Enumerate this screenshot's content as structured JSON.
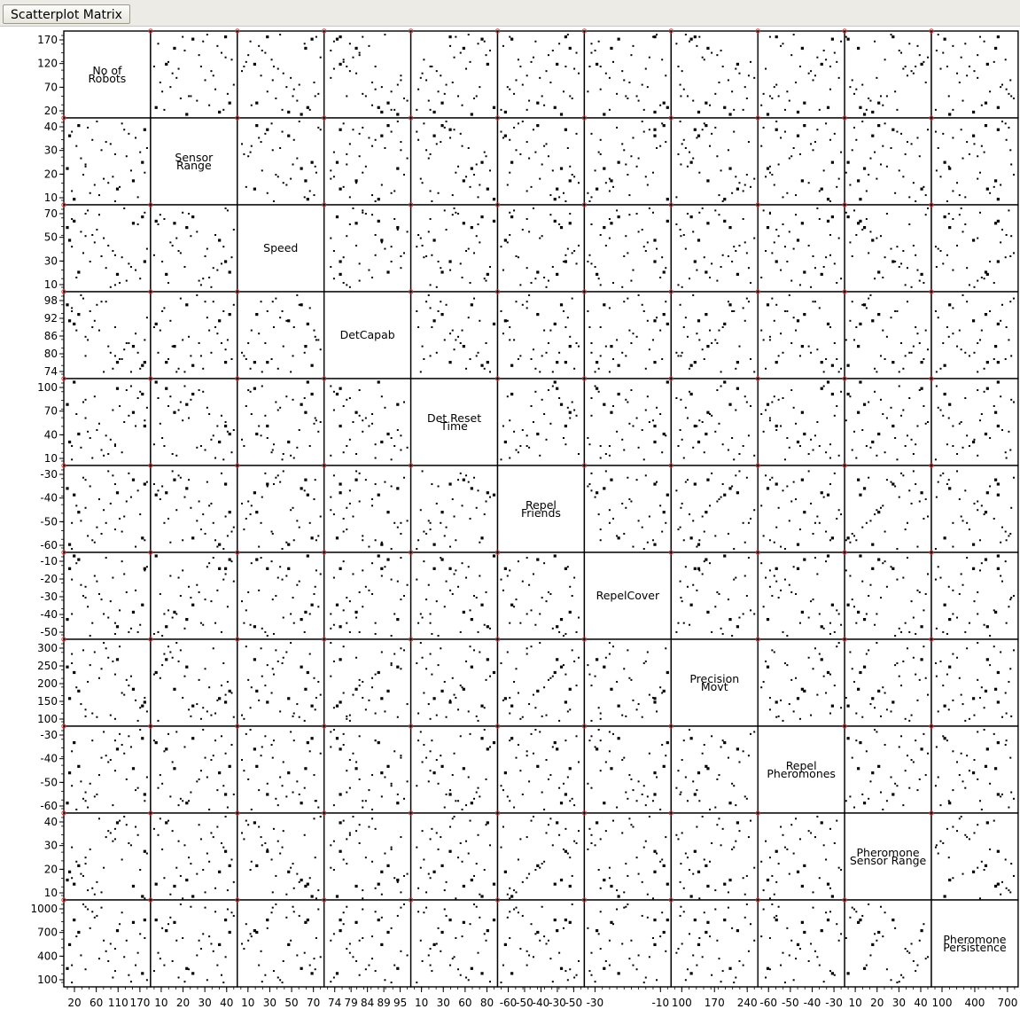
{
  "window": {
    "title": "Scatterplot Matrix"
  },
  "chart_data": {
    "type": "scatter",
    "subtype": "scatterplot-matrix",
    "grid": false,
    "variables": [
      {
        "name": "No of Robots",
        "label_lines": [
          "No of",
          "Robots"
        ],
        "range": [
          20,
          195
        ],
        "y_ticks": [
          "170",
          "120",
          "70",
          "20"
        ],
        "x_ticks": [
          "20",
          "60",
          "110",
          "170"
        ]
      },
      {
        "name": "Sensor Range",
        "label_lines": [
          "Sensor",
          "Range"
        ],
        "range": [
          3,
          42
        ],
        "y_ticks": [
          "40",
          "30",
          "20",
          "10"
        ],
        "x_ticks": [
          "10",
          "20",
          "30",
          "40"
        ]
      },
      {
        "name": "Speed",
        "label_lines": [
          "Speed"
        ],
        "range": [
          5,
          80
        ],
        "y_ticks": [
          "70",
          "50",
          "30",
          "10"
        ],
        "x_ticks": [
          "10",
          "30",
          "50",
          "70"
        ]
      },
      {
        "name": "DetCapab",
        "label_lines": [
          "DetCapab"
        ],
        "range": [
          73,
          98
        ],
        "y_ticks": [
          "98",
          "92",
          "86",
          "80",
          "74"
        ],
        "x_ticks": [
          "74",
          "79",
          "84",
          "89",
          "95"
        ]
      },
      {
        "name": "Det Reset Time",
        "label_lines": [
          "Det Reset",
          "Time"
        ],
        "range": [
          0,
          100
        ],
        "y_ticks": [
          "100",
          "70",
          "40",
          "10"
        ],
        "x_ticks": [
          "10",
          "30",
          "60",
          "80"
        ]
      },
      {
        "name": "Repel Friends",
        "label_lines": [
          "Repel",
          "Friends"
        ],
        "range": [
          -62,
          -25
        ],
        "y_ticks": [
          "-30",
          "-40",
          "-50",
          "-60"
        ],
        "x_ticks": [
          "-60",
          "-50",
          "-40",
          "-30",
          "-50"
        ]
      },
      {
        "name": "RepelCover",
        "label_lines": [
          "RepelCover"
        ],
        "range": [
          -52,
          -8
        ],
        "y_ticks": [
          "-10",
          "-20",
          "-30",
          "-40",
          "-50"
        ],
        "x_ticks": [
          "-30",
          "-10"
        ]
      },
      {
        "name": "Precision Movt",
        "label_lines": [
          "Precision",
          "Movt"
        ],
        "range": [
          95,
          310
        ],
        "y_ticks": [
          "300",
          "250",
          "200",
          "150",
          "100"
        ],
        "x_ticks": [
          "100",
          "170",
          "240"
        ]
      },
      {
        "name": "Repel Pheromones",
        "label_lines": [
          "Repel",
          "Pheromones"
        ],
        "range": [
          -62,
          -25
        ],
        "y_ticks": [
          "-30",
          "-40",
          "-50",
          "-60"
        ],
        "x_ticks": [
          "-60",
          "-50",
          "-40",
          "-30"
        ]
      },
      {
        "name": "Pheromone Sensor Range",
        "label_lines": [
          "Pheromone",
          "Sensor Range"
        ],
        "range": [
          3,
          42
        ],
        "y_ticks": [
          "40",
          "30",
          "20",
          "10"
        ],
        "x_ticks": [
          "10",
          "20",
          "30",
          "40"
        ]
      },
      {
        "name": "Pheromone Persistence",
        "label_lines": [
          "Pheromone",
          "Persistence"
        ],
        "range": [
          80,
          1050
        ],
        "y_ticks": [
          "1000",
          "700",
          "400",
          "100"
        ],
        "x_ticks": [
          "100",
          "400",
          "700"
        ]
      }
    ],
    "observations": [
      [
        190,
        38,
        30,
        77,
        45,
        -32,
        -15,
        150,
        -55,
        25,
        850
      ],
      [
        30,
        8,
        70,
        94,
        20,
        -50,
        -40,
        280,
        -35,
        12,
        300
      ],
      [
        150,
        25,
        12,
        83,
        90,
        -40,
        -28,
        210,
        -48,
        38,
        600
      ],
      [
        75,
        33,
        55,
        88,
        5,
        -58,
        -45,
        120,
        -30,
        7,
        950
      ],
      [
        120,
        15,
        40,
        75,
        65,
        -28,
        -20,
        260,
        -60,
        30,
        150
      ],
      [
        45,
        40,
        20,
        92,
        35,
        -45,
        -10,
        180,
        -42,
        18,
        700
      ],
      [
        175,
        5,
        65,
        80,
        80,
        -35,
        -50,
        100,
        -52,
        33,
        450
      ],
      [
        95,
        28,
        35,
        96,
        15,
        -55,
        -32,
        240,
        -38,
        5,
        1000
      ],
      [
        60,
        20,
        75,
        85,
        55,
        -30,
        -25,
        130,
        -58,
        22,
        250
      ],
      [
        135,
        10,
        10,
        78,
        70,
        -48,
        -38,
        300,
        -27,
        40,
        800
      ],
      [
        25,
        35,
        50,
        90,
        25,
        -60,
        -15,
        160,
        -45,
        15,
        550
      ],
      [
        160,
        18,
        25,
        74,
        95,
        -38,
        -48,
        220,
        -33,
        28,
        100
      ],
      [
        85,
        42,
        60,
        95,
        40,
        -52,
        -22,
        110,
        -55,
        10,
        900
      ],
      [
        110,
        12,
        45,
        82,
        10,
        -26,
        -42,
        270,
        -40,
        35,
        350
      ],
      [
        40,
        30,
        15,
        87,
        60,
        -42,
        -12,
        190,
        -62,
        20,
        650
      ],
      [
        185,
        22,
        72,
        76,
        85,
        -57,
        -35,
        140,
        -29,
        3,
        200
      ],
      [
        70,
        7,
        30,
        93,
        30,
        -33,
        -52,
        250,
        -50,
        26,
        750
      ],
      [
        145,
        38,
        80,
        81,
        50,
        -47,
        -18,
        170,
        -36,
        42,
        400
      ],
      [
        55,
        16,
        38,
        97,
        75,
        -29,
        -30,
        290,
        -57,
        13,
        1040
      ],
      [
        125,
        26,
        8,
        79,
        20,
        -53,
        -45,
        105,
        -44,
        31,
        500
      ],
      [
        35,
        4,
        68,
        89,
        100,
        -37,
        -8,
        230,
        -31,
        9,
        850
      ],
      [
        170,
        34,
        22,
        86,
        45,
        -61,
        -27,
        155,
        -53,
        37,
        300
      ],
      [
        100,
        14,
        52,
        74,
        8,
        -44,
        -40,
        310,
        -26,
        17,
        600
      ],
      [
        195,
        29,
        42,
        91,
        68,
        -31,
        -14,
        125,
        -47,
        24,
        120
      ],
      [
        65,
        39,
        78,
        84,
        38,
        -56,
        -36,
        205,
        -61,
        6,
        980
      ],
      [
        130,
        9,
        18,
        77,
        92,
        -36,
        -47,
        265,
        -34,
        39,
        720
      ],
      [
        50,
        24,
        58,
        98,
        18,
        -49,
        -24,
        145,
        -49,
        14,
        420
      ],
      [
        155,
        36,
        28,
        83,
        58,
        -27,
        -50,
        195,
        -28,
        29,
        180
      ],
      [
        80,
        11,
        48,
        90,
        82,
        -59,
        -19,
        285,
        -56,
        4,
        880
      ],
      [
        115,
        31,
        6,
        80,
        28,
        -41,
        -33,
        115,
        -39,
        34,
        560
      ],
      [
        20,
        19,
        62,
        95,
        72,
        -34,
        -43,
        245,
        -59,
        11,
        260
      ],
      [
        140,
        41,
        34,
        78,
        12,
        -54,
        -11,
        175,
        -32,
        21,
        940
      ],
      [
        90,
        6,
        74,
        87,
        48,
        -39,
        -29,
        215,
        -46,
        41,
        380
      ],
      [
        180,
        27,
        14,
        75,
        88,
        -46,
        -46,
        135,
        -25,
        16,
        680
      ],
      [
        30,
        37,
        44,
        93,
        3,
        -62,
        -21,
        255,
        -51,
        27,
        90
      ],
      [
        165,
        13,
        66,
        82,
        62,
        -30,
        -39,
        185,
        -43,
        8,
        820
      ],
      [
        105,
        32,
        24,
        96,
        33,
        -50,
        -9,
        295,
        -37,
        32,
        470
      ],
      [
        60,
        21,
        54,
        79,
        78,
        -43,
        -31,
        112,
        -54,
        19,
        1010
      ],
      [
        125,
        3,
        36,
        88,
        22,
        -32,
        -51,
        225,
        -30,
        36,
        230
      ],
      [
        190,
        17,
        76,
        84,
        52,
        -58,
        -16,
        162,
        -58,
        2,
        630
      ]
    ]
  }
}
